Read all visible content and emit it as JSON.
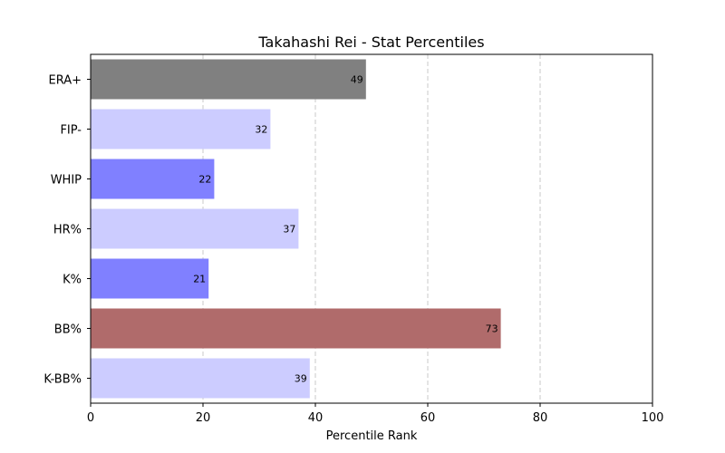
{
  "chart_data": {
    "type": "bar",
    "orientation": "horizontal",
    "title": "Takahashi Rei - Stat Percentiles",
    "xlabel": "Percentile Rank",
    "ylabel": "",
    "xlim": [
      0,
      100
    ],
    "xticks": [
      0,
      20,
      40,
      60,
      80,
      100
    ],
    "grid": "x-dashed",
    "categories": [
      "ERA+",
      "FIP-",
      "WHIP",
      "HR%",
      "K%",
      "BB%",
      "K-BB%"
    ],
    "values": [
      49,
      32,
      22,
      37,
      21,
      73,
      39
    ],
    "colors": [
      "#808080",
      "#ccccff",
      "#8080ff",
      "#ccccff",
      "#8080ff",
      "#b06b6b",
      "#ccccff"
    ]
  }
}
